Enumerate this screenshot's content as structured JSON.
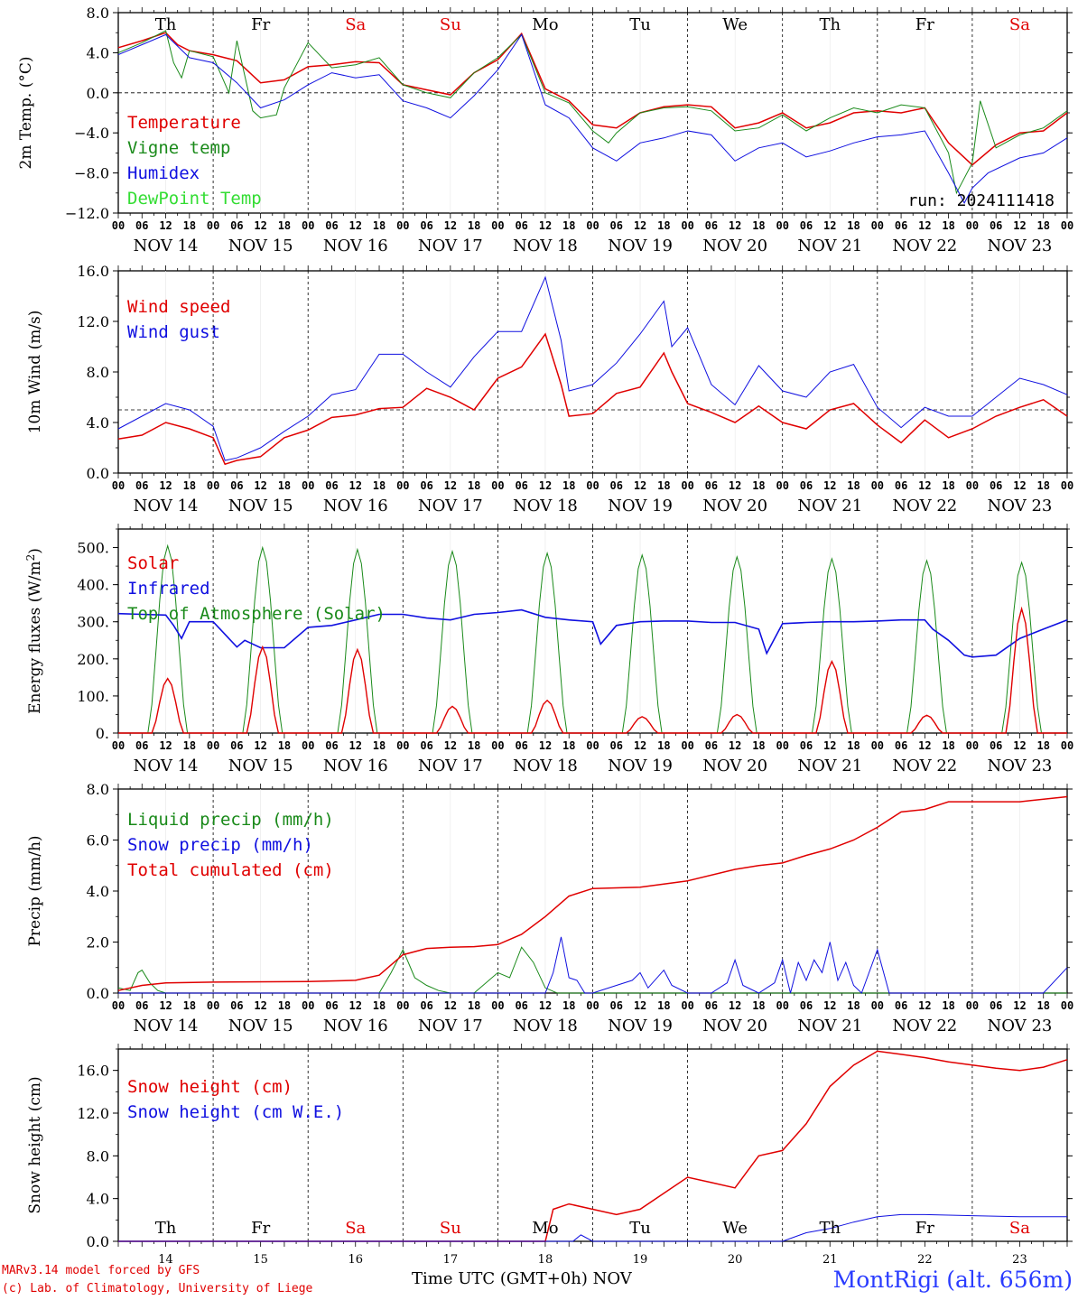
{
  "run_label": "run: 2024111418",
  "credits": {
    "line1": "MARv3.14 model forced by GFS",
    "line2": "(c) Lab. of Climatology, University of Liege"
  },
  "station": "MontRigi (alt. 656m)",
  "time_axis_title": "Time UTC (GMT+0h)",
  "month_label": "NOV",
  "colors": {
    "red": "#e00000",
    "green": "#1a8a1a",
    "blue": "#1010e0",
    "lightgreen": "#33dd33",
    "sat_sun": "#e00000",
    "grid": "#000000"
  },
  "days": {
    "weekday_labels": [
      "Th",
      "Fr",
      "Sa",
      "Su",
      "Mo",
      "Tu",
      "We",
      "Th",
      "Fr",
      "Sa"
    ],
    "weekend_flags": [
      false,
      false,
      true,
      true,
      false,
      false,
      false,
      false,
      false,
      true
    ],
    "date_labels": [
      "NOV 14",
      "NOV 15",
      "NOV 16",
      "NOV 17",
      "NOV 18",
      "NOV 19",
      "NOV 20",
      "NOV 21",
      "NOV 22",
      "NOV 23"
    ],
    "day_numbers": [
      "14",
      "15",
      "16",
      "17",
      "18",
      "19",
      "20",
      "21",
      "22",
      "23"
    ],
    "hour_labels": [
      "00",
      "06",
      "12",
      "18"
    ],
    "final_hour_label": "00"
  },
  "chart_data": [
    {
      "type": "line",
      "ylabel": "2m Temp. (°C)",
      "ylim": [
        -12,
        8
      ],
      "yticks": [
        -12,
        -8,
        -4,
        0,
        4,
        8
      ],
      "ytick_labels": [
        "−12.0",
        "−8.0",
        "−4.0",
        "0.0",
        "4.0",
        "8.0"
      ],
      "reference_line": 0,
      "x_unit": "hours since NOV 14 00 UTC",
      "series": [
        {
          "name": "Temperature",
          "color": "#e00000",
          "x": [
            0,
            6,
            12,
            15,
            18,
            21,
            24,
            30,
            36,
            42,
            48,
            54,
            60,
            66,
            72,
            78,
            84,
            90,
            96,
            102,
            108,
            114,
            120,
            126,
            132,
            138,
            144,
            150,
            156,
            162,
            168,
            174,
            180,
            186,
            192,
            198,
            204,
            210,
            216,
            222,
            228,
            234,
            240
          ],
          "y": [
            4.5,
            5.2,
            6.0,
            4.8,
            4.2,
            4.0,
            3.8,
            3.2,
            1.0,
            1.3,
            2.6,
            2.8,
            3.1,
            3.0,
            0.8,
            0.3,
            -0.2,
            2.0,
            3.3,
            5.9,
            0.4,
            -0.8,
            -3.2,
            -3.5,
            -2.0,
            -1.4,
            -1.2,
            -1.4,
            -3.5,
            -3.0,
            -2.0,
            -3.5,
            -3.0,
            -2.0,
            -1.8,
            -2.0,
            -1.5,
            -5.0,
            -7.2,
            -5.2,
            -4.0,
            -3.8,
            -2.0
          ]
        },
        {
          "name": "Vigne temp",
          "color": "#1a8a1a",
          "x": [
            0,
            6,
            12,
            14,
            16,
            18,
            24,
            28,
            30,
            34,
            36,
            40,
            42,
            48,
            54,
            60,
            66,
            72,
            78,
            84,
            90,
            96,
            102,
            108,
            114,
            120,
            124,
            126,
            132,
            138,
            144,
            150,
            156,
            162,
            168,
            174,
            180,
            186,
            192,
            198,
            204,
            210,
            212,
            216,
            218,
            222,
            228,
            234,
            240
          ],
          "y": [
            4.0,
            5.0,
            6.2,
            3.0,
            1.5,
            4.2,
            3.6,
            0.0,
            5.2,
            -1.8,
            -2.5,
            -2.2,
            0.5,
            5.0,
            2.5,
            2.8,
            3.5,
            0.8,
            0.0,
            -0.5,
            2.0,
            3.5,
            5.8,
            0.0,
            -1.0,
            -3.8,
            -5.0,
            -4.0,
            -2.0,
            -1.5,
            -1.4,
            -1.8,
            -3.8,
            -3.5,
            -2.2,
            -3.8,
            -2.5,
            -1.5,
            -2.0,
            -1.2,
            -1.5,
            -6.0,
            -10.0,
            -7.0,
            -0.8,
            -5.5,
            -4.2,
            -3.5,
            -1.8
          ]
        },
        {
          "name": "Humidex",
          "color": "#1010e0",
          "x": [
            0,
            6,
            12,
            18,
            24,
            30,
            36,
            42,
            48,
            54,
            60,
            66,
            72,
            78,
            84,
            90,
            96,
            102,
            108,
            114,
            120,
            126,
            132,
            138,
            144,
            150,
            156,
            162,
            168,
            174,
            180,
            186,
            192,
            198,
            204,
            210,
            214,
            216,
            220,
            228,
            234,
            240
          ],
          "y": [
            3.8,
            4.8,
            5.8,
            3.5,
            3.0,
            1.0,
            -1.5,
            -0.7,
            0.8,
            2.0,
            1.5,
            1.8,
            -0.8,
            -1.5,
            -2.5,
            -0.3,
            2.3,
            5.8,
            -1.2,
            -2.5,
            -5.5,
            -6.8,
            -5.0,
            -4.5,
            -3.8,
            -4.2,
            -6.8,
            -5.5,
            -5.0,
            -6.4,
            -5.8,
            -5.0,
            -4.4,
            -4.2,
            -3.8,
            -8.0,
            -11.0,
            -9.5,
            -8.0,
            -6.5,
            -6.0,
            -4.5
          ]
        }
      ],
      "legend": [
        "Temperature",
        "Vigne temp",
        "Humidex",
        "DewPoint Temp"
      ],
      "legend_colors": [
        "#e00000",
        "#1a8a1a",
        "#1010e0",
        "#33dd33"
      ]
    },
    {
      "type": "line",
      "ylabel": "10m Wind (m/s)",
      "ylim": [
        0,
        16
      ],
      "yticks": [
        0,
        4,
        8,
        12,
        16
      ],
      "ytick_labels": [
        "0.0",
        "4.0",
        "8.0",
        "12.0",
        "16.0"
      ],
      "reference_line": 5,
      "x_unit": "hours since NOV 14 00 UTC",
      "series": [
        {
          "name": "Wind speed",
          "color": "#e00000",
          "x": [
            0,
            6,
            12,
            18,
            24,
            27,
            30,
            36,
            42,
            48,
            54,
            60,
            66,
            72,
            78,
            84,
            90,
            96,
            102,
            108,
            112,
            114,
            120,
            126,
            132,
            138,
            140,
            144,
            150,
            156,
            162,
            168,
            174,
            180,
            186,
            192,
            198,
            204,
            210,
            216,
            222,
            228,
            234,
            240
          ],
          "y": [
            2.7,
            3.0,
            4.0,
            3.5,
            2.8,
            0.7,
            1.0,
            1.3,
            2.8,
            3.4,
            4.4,
            4.6,
            5.1,
            5.2,
            6.7,
            6.0,
            5.0,
            7.5,
            8.4,
            11.0,
            7.0,
            4.5,
            4.7,
            6.3,
            6.8,
            9.5,
            8.0,
            5.5,
            4.8,
            4.0,
            5.3,
            4.0,
            3.5,
            5.0,
            5.5,
            3.8,
            2.4,
            4.2,
            2.8,
            3.5,
            4.5,
            5.2,
            5.8,
            4.5
          ]
        },
        {
          "name": "Wind gust",
          "color": "#1010e0",
          "x": [
            0,
            6,
            12,
            18,
            24,
            27,
            30,
            36,
            42,
            48,
            54,
            60,
            66,
            72,
            78,
            84,
            90,
            96,
            102,
            108,
            112,
            114,
            120,
            126,
            132,
            138,
            140,
            144,
            150,
            156,
            162,
            168,
            174,
            180,
            186,
            192,
            198,
            204,
            210,
            216,
            222,
            228,
            234,
            240
          ],
          "y": [
            3.5,
            4.5,
            5.5,
            5.0,
            3.7,
            1.0,
            1.2,
            2.0,
            3.3,
            4.5,
            6.2,
            6.6,
            9.4,
            9.4,
            8.0,
            6.8,
            9.2,
            11.2,
            11.2,
            15.5,
            10.5,
            6.5,
            7.0,
            8.7,
            11.0,
            13.6,
            10.0,
            11.5,
            7.0,
            5.4,
            8.5,
            6.5,
            6.0,
            8.0,
            8.6,
            5.2,
            3.6,
            5.2,
            4.5,
            4.5,
            6.0,
            7.5,
            7.0,
            6.2
          ]
        }
      ],
      "legend": [
        "Wind speed",
        "Wind gust"
      ],
      "legend_colors": [
        "#e00000",
        "#1010e0"
      ]
    },
    {
      "type": "line",
      "ylabel": "Energy fluxes (W/m2)",
      "ylim": [
        0,
        550
      ],
      "yticks": [
        0,
        100,
        200,
        300,
        400,
        500
      ],
      "ytick_labels": [
        "0.",
        "100.",
        "200.",
        "300.",
        "400.",
        "500."
      ],
      "x_unit": "hours since NOV 14 00 UTC",
      "diurnal_peaks": {
        "solar": [
          147,
          232,
          225,
          72,
          88,
          44,
          50,
          193,
          48,
          335
        ],
        "top_of_atmosphere": [
          505,
          500,
          495,
          490,
          485,
          480,
          475,
          470,
          465,
          460
        ]
      },
      "series": [
        {
          "name": "Infrared",
          "color": "#1010e0",
          "x": [
            0,
            6,
            12,
            14,
            16,
            18,
            24,
            30,
            32,
            36,
            42,
            48,
            54,
            60,
            66,
            72,
            78,
            84,
            90,
            96,
            102,
            108,
            114,
            120,
            122,
            126,
            132,
            138,
            144,
            150,
            156,
            162,
            164,
            168,
            174,
            180,
            186,
            192,
            198,
            204,
            206,
            210,
            214,
            216,
            222,
            228,
            234,
            240
          ],
          "y": [
            322,
            320,
            318,
            290,
            255,
            300,
            300,
            232,
            250,
            230,
            230,
            285,
            290,
            305,
            320,
            320,
            310,
            305,
            320,
            325,
            332,
            312,
            305,
            300,
            240,
            290,
            300,
            302,
            302,
            298,
            298,
            280,
            215,
            295,
            298,
            300,
            300,
            302,
            305,
            305,
            280,
            250,
            210,
            205,
            210,
            255,
            280,
            305
          ]
        },
        {
          "name": "Solar",
          "color": "#e00000"
        },
        {
          "name": "Top of Atmosphere (Solar)",
          "color": "#1a8a1a"
        }
      ],
      "legend": [
        "Solar",
        "Infrared",
        "Top of Atmosphere (Solar)"
      ],
      "legend_colors": [
        "#e00000",
        "#1010e0",
        "#1a8a1a"
      ]
    },
    {
      "type": "line",
      "ylabel": "Precip (mm/h)",
      "ylim": [
        0,
        8
      ],
      "yticks": [
        0,
        2,
        4,
        6,
        8
      ],
      "ytick_labels": [
        "0.0",
        "2.0",
        "4.0",
        "6.0",
        "8.0"
      ],
      "x_unit": "hours since NOV 14 00 UTC",
      "series": [
        {
          "name": "Liquid precip (mm/h)",
          "color": "#1a8a1a",
          "x": [
            0,
            3,
            5,
            6,
            8,
            10,
            12,
            66,
            69,
            72,
            75,
            78,
            81,
            84,
            90,
            96,
            99,
            102,
            105,
            108,
            111,
            114,
            240
          ],
          "y": [
            0.2,
            0.1,
            0.8,
            0.9,
            0.4,
            0.1,
            0.0,
            0.0,
            0.8,
            1.7,
            0.6,
            0.3,
            0.1,
            0.0,
            0.0,
            0.8,
            0.6,
            1.8,
            1.2,
            0.2,
            0.0,
            0.0,
            0.0
          ]
        },
        {
          "name": "Snow precip (mm/h)",
          "color": "#1010e0",
          "x": [
            0,
            108,
            110,
            112,
            114,
            116,
            118,
            120,
            126,
            130,
            132,
            134,
            138,
            140,
            144,
            150,
            154,
            156,
            158,
            162,
            166,
            168,
            170,
            172,
            174,
            176,
            178,
            180,
            182,
            184,
            186,
            188,
            192,
            195,
            196,
            198,
            204,
            234,
            240
          ],
          "y": [
            0,
            0,
            0.8,
            2.2,
            0.6,
            0.5,
            0.0,
            0.0,
            0.3,
            0.5,
            0.8,
            0.2,
            0.9,
            0.3,
            0.0,
            0.0,
            0.4,
            1.3,
            0.3,
            0.0,
            0.4,
            1.3,
            0.0,
            1.2,
            0.5,
            1.3,
            0.8,
            2.0,
            0.5,
            1.2,
            0.3,
            0.0,
            1.7,
            0.0,
            0.0,
            0.0,
            0.0,
            0.0,
            1.0
          ]
        },
        {
          "name": "Total cumulated (cm)",
          "color": "#e00000",
          "x": [
            0,
            6,
            12,
            24,
            48,
            60,
            66,
            72,
            78,
            84,
            90,
            96,
            102,
            108,
            114,
            120,
            132,
            144,
            156,
            162,
            168,
            174,
            180,
            186,
            192,
            198,
            204,
            210,
            216,
            228,
            240
          ],
          "y": [
            0.1,
            0.3,
            0.4,
            0.43,
            0.45,
            0.5,
            0.7,
            1.5,
            1.75,
            1.8,
            1.82,
            1.9,
            2.3,
            3.0,
            3.8,
            4.1,
            4.15,
            4.4,
            4.85,
            5.0,
            5.1,
            5.4,
            5.65,
            6.0,
            6.5,
            7.1,
            7.2,
            7.5,
            7.5,
            7.5,
            7.7
          ]
        }
      ],
      "legend": [
        "Liquid precip (mm/h)",
        "Snow precip (mm/h)",
        "Total cumulated (cm)"
      ],
      "legend_colors": [
        "#1a8a1a",
        "#1010e0",
        "#e00000"
      ]
    },
    {
      "type": "line",
      "ylabel": "Snow height (cm)",
      "ylim": [
        0,
        18
      ],
      "yticks": [
        0,
        4,
        8,
        12,
        16
      ],
      "ytick_labels": [
        "0.0",
        "4.0",
        "8.0",
        "12.0",
        "16.0"
      ],
      "x_unit": "hours since NOV 14 00 UTC",
      "series": [
        {
          "name": "Snow height (cm)",
          "color": "#e00000",
          "x": [
            0,
            108,
            110,
            114,
            120,
            126,
            132,
            138,
            144,
            150,
            156,
            162,
            168,
            174,
            180,
            186,
            192,
            198,
            204,
            210,
            216,
            222,
            228,
            234,
            240
          ],
          "y": [
            0,
            0,
            3.0,
            3.5,
            3.0,
            2.5,
            3.0,
            4.5,
            6.0,
            5.5,
            5.0,
            8.0,
            8.5,
            11.0,
            14.5,
            16.5,
            17.8,
            17.5,
            17.2,
            16.8,
            16.5,
            16.2,
            16.0,
            16.3,
            17.0
          ]
        },
        {
          "name": "Snow height (cm W.E.)",
          "color": "#1010e0",
          "x": [
            0,
            115,
            117,
            120,
            168,
            174,
            180,
            186,
            192,
            198,
            204,
            216,
            228,
            240
          ],
          "y": [
            0,
            0,
            0.6,
            0,
            0,
            0.8,
            1.2,
            1.8,
            2.3,
            2.5,
            2.5,
            2.4,
            2.3,
            2.3
          ]
        }
      ],
      "legend": [
        "Snow height (cm)",
        "Snow height (cm W.E.)"
      ],
      "legend_colors": [
        "#e00000",
        "#1010e0"
      ]
    }
  ]
}
